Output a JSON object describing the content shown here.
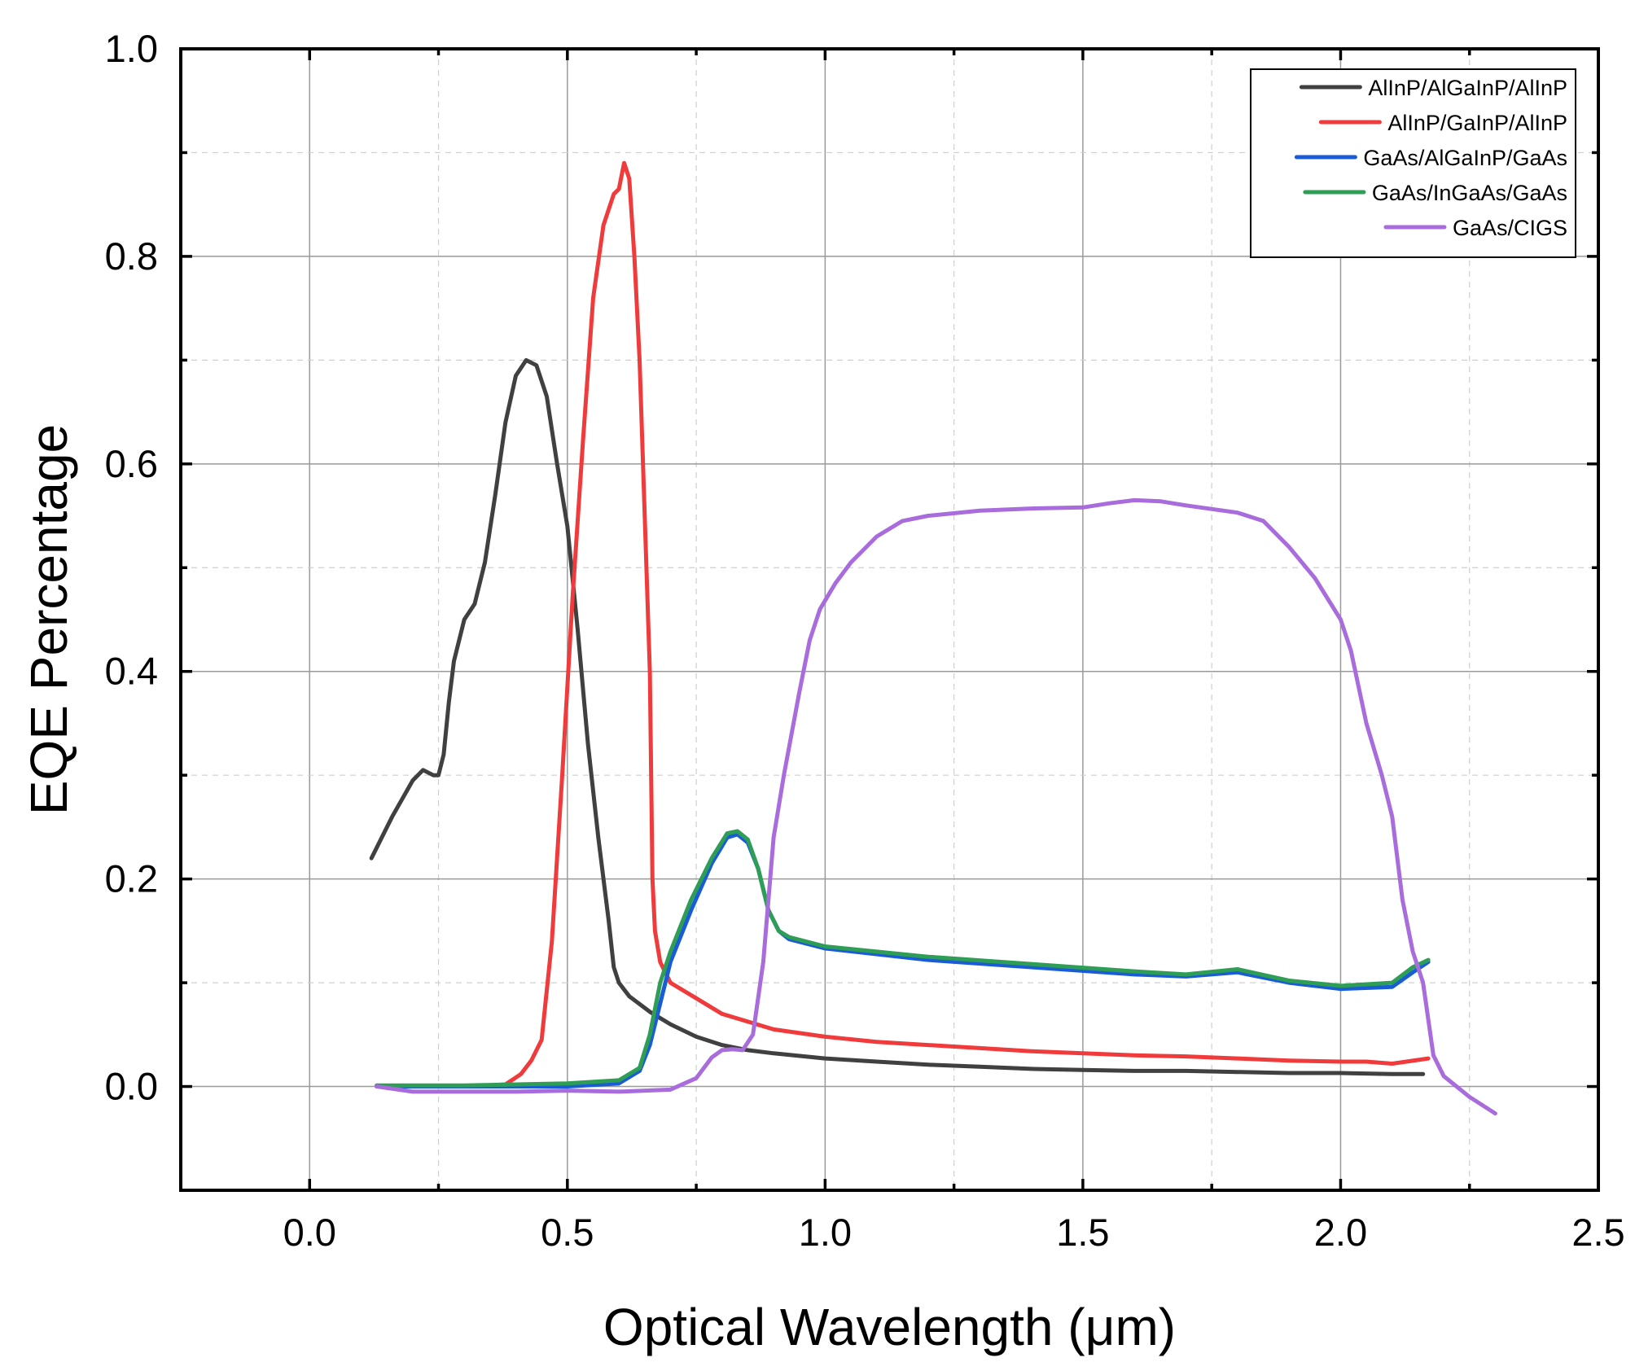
{
  "chart_data": {
    "type": "line",
    "title": "",
    "xlabel": "Optical Wavelength (μm)",
    "ylabel": "EQE Percentage",
    "xlim": [
      -0.25,
      2.5
    ],
    "ylim": [
      -0.1,
      1.0
    ],
    "xticks": [
      0.0,
      0.5,
      1.0,
      1.5,
      2.0,
      2.5
    ],
    "yticks": [
      0.0,
      0.2,
      0.4,
      0.6,
      0.8,
      1.0
    ],
    "xtick_labels": [
      "0.0",
      "0.5",
      "1.0",
      "1.5",
      "2.0",
      "2.5"
    ],
    "ytick_labels": [
      "0.0",
      "0.2",
      "0.4",
      "0.6",
      "0.8",
      "1.0"
    ],
    "x_minor_step": 0.25,
    "y_minor_step": 0.1,
    "grid": true,
    "legend_position": "top-right",
    "series": [
      {
        "name": "AlInP/AlGaInP/AlInP",
        "color": "#404040",
        "x": [
          0.12,
          0.16,
          0.2,
          0.22,
          0.24,
          0.25,
          0.26,
          0.27,
          0.28,
          0.3,
          0.32,
          0.34,
          0.36,
          0.38,
          0.4,
          0.42,
          0.44,
          0.46,
          0.48,
          0.5,
          0.52,
          0.54,
          0.56,
          0.58,
          0.59,
          0.6,
          0.62,
          0.66,
          0.7,
          0.75,
          0.8,
          0.85,
          0.9,
          1.0,
          1.1,
          1.2,
          1.3,
          1.4,
          1.5,
          1.6,
          1.7,
          1.8,
          1.9,
          2.0,
          2.1,
          2.16
        ],
        "y": [
          0.22,
          0.26,
          0.295,
          0.305,
          0.3,
          0.3,
          0.32,
          0.37,
          0.41,
          0.45,
          0.465,
          0.505,
          0.57,
          0.64,
          0.685,
          0.7,
          0.695,
          0.665,
          0.6,
          0.54,
          0.44,
          0.33,
          0.24,
          0.16,
          0.115,
          0.1,
          0.087,
          0.072,
          0.06,
          0.048,
          0.04,
          0.035,
          0.032,
          0.027,
          0.024,
          0.021,
          0.019,
          0.017,
          0.016,
          0.015,
          0.015,
          0.014,
          0.013,
          0.013,
          0.012,
          0.012
        ]
      },
      {
        "name": "AlInP/GaInP/AlInP",
        "color": "#ef3b3b",
        "x": [
          0.13,
          0.2,
          0.3,
          0.38,
          0.41,
          0.43,
          0.45,
          0.47,
          0.49,
          0.51,
          0.53,
          0.55,
          0.57,
          0.59,
          0.6,
          0.61,
          0.62,
          0.63,
          0.64,
          0.65,
          0.66,
          0.665,
          0.67,
          0.68,
          0.7,
          0.75,
          0.8,
          0.9,
          1.0,
          1.1,
          1.2,
          1.3,
          1.4,
          1.5,
          1.6,
          1.7,
          1.8,
          1.9,
          2.0,
          2.05,
          2.1,
          2.17
        ],
        "y": [
          0.0,
          0.0,
          0.0,
          0.002,
          0.012,
          0.025,
          0.045,
          0.14,
          0.3,
          0.47,
          0.62,
          0.76,
          0.83,
          0.86,
          0.865,
          0.89,
          0.875,
          0.8,
          0.7,
          0.55,
          0.4,
          0.2,
          0.15,
          0.12,
          0.1,
          0.085,
          0.07,
          0.055,
          0.048,
          0.043,
          0.04,
          0.037,
          0.034,
          0.032,
          0.03,
          0.029,
          0.027,
          0.025,
          0.024,
          0.024,
          0.022,
          0.027
        ]
      },
      {
        "name": "GaAs/AlGaInP/GaAs",
        "color": "#1a5bd6",
        "x": [
          0.13,
          0.3,
          0.5,
          0.6,
          0.64,
          0.66,
          0.68,
          0.7,
          0.74,
          0.78,
          0.81,
          0.83,
          0.85,
          0.87,
          0.89,
          0.91,
          0.93,
          1.0,
          1.2,
          1.4,
          1.6,
          1.7,
          1.8,
          1.9,
          2.0,
          2.1,
          2.14,
          2.17
        ],
        "y": [
          0.0,
          0.0,
          0.0,
          0.003,
          0.015,
          0.04,
          0.08,
          0.12,
          0.17,
          0.215,
          0.24,
          0.243,
          0.235,
          0.21,
          0.17,
          0.15,
          0.142,
          0.133,
          0.122,
          0.115,
          0.108,
          0.106,
          0.11,
          0.1,
          0.094,
          0.096,
          0.11,
          0.12
        ]
      },
      {
        "name": "GaAs/InGaAs/GaAs",
        "color": "#2e9e56",
        "x": [
          0.13,
          0.3,
          0.5,
          0.6,
          0.64,
          0.66,
          0.68,
          0.7,
          0.74,
          0.78,
          0.81,
          0.83,
          0.85,
          0.87,
          0.89,
          0.91,
          0.93,
          1.0,
          1.2,
          1.4,
          1.6,
          1.7,
          1.8,
          1.9,
          2.0,
          2.1,
          2.14,
          2.17
        ],
        "y": [
          0.001,
          0.001,
          0.003,
          0.006,
          0.018,
          0.05,
          0.1,
          0.13,
          0.18,
          0.22,
          0.244,
          0.246,
          0.238,
          0.21,
          0.17,
          0.15,
          0.144,
          0.135,
          0.125,
          0.118,
          0.111,
          0.108,
          0.113,
          0.102,
          0.097,
          0.1,
          0.115,
          0.122
        ]
      },
      {
        "name": "GaAs/CIGS",
        "color": "#a86cdc",
        "x": [
          0.13,
          0.2,
          0.3,
          0.4,
          0.5,
          0.6,
          0.7,
          0.75,
          0.78,
          0.8,
          0.82,
          0.84,
          0.86,
          0.88,
          0.9,
          0.92,
          0.95,
          0.97,
          0.99,
          1.02,
          1.05,
          1.1,
          1.15,
          1.2,
          1.3,
          1.4,
          1.5,
          1.55,
          1.6,
          1.65,
          1.7,
          1.8,
          1.85,
          1.9,
          1.95,
          2.0,
          2.02,
          2.05,
          2.08,
          2.1,
          2.12,
          2.14,
          2.16,
          2.18,
          2.2,
          2.25,
          2.3
        ],
        "y": [
          0.0,
          -0.005,
          -0.005,
          -0.005,
          -0.004,
          -0.005,
          -0.003,
          0.008,
          0.028,
          0.035,
          0.036,
          0.035,
          0.05,
          0.12,
          0.24,
          0.3,
          0.38,
          0.43,
          0.46,
          0.485,
          0.505,
          0.53,
          0.545,
          0.55,
          0.555,
          0.557,
          0.558,
          0.562,
          0.565,
          0.564,
          0.56,
          0.553,
          0.545,
          0.52,
          0.49,
          0.45,
          0.42,
          0.35,
          0.3,
          0.26,
          0.18,
          0.13,
          0.1,
          0.03,
          0.01,
          -0.01,
          -0.026
        ]
      }
    ]
  }
}
